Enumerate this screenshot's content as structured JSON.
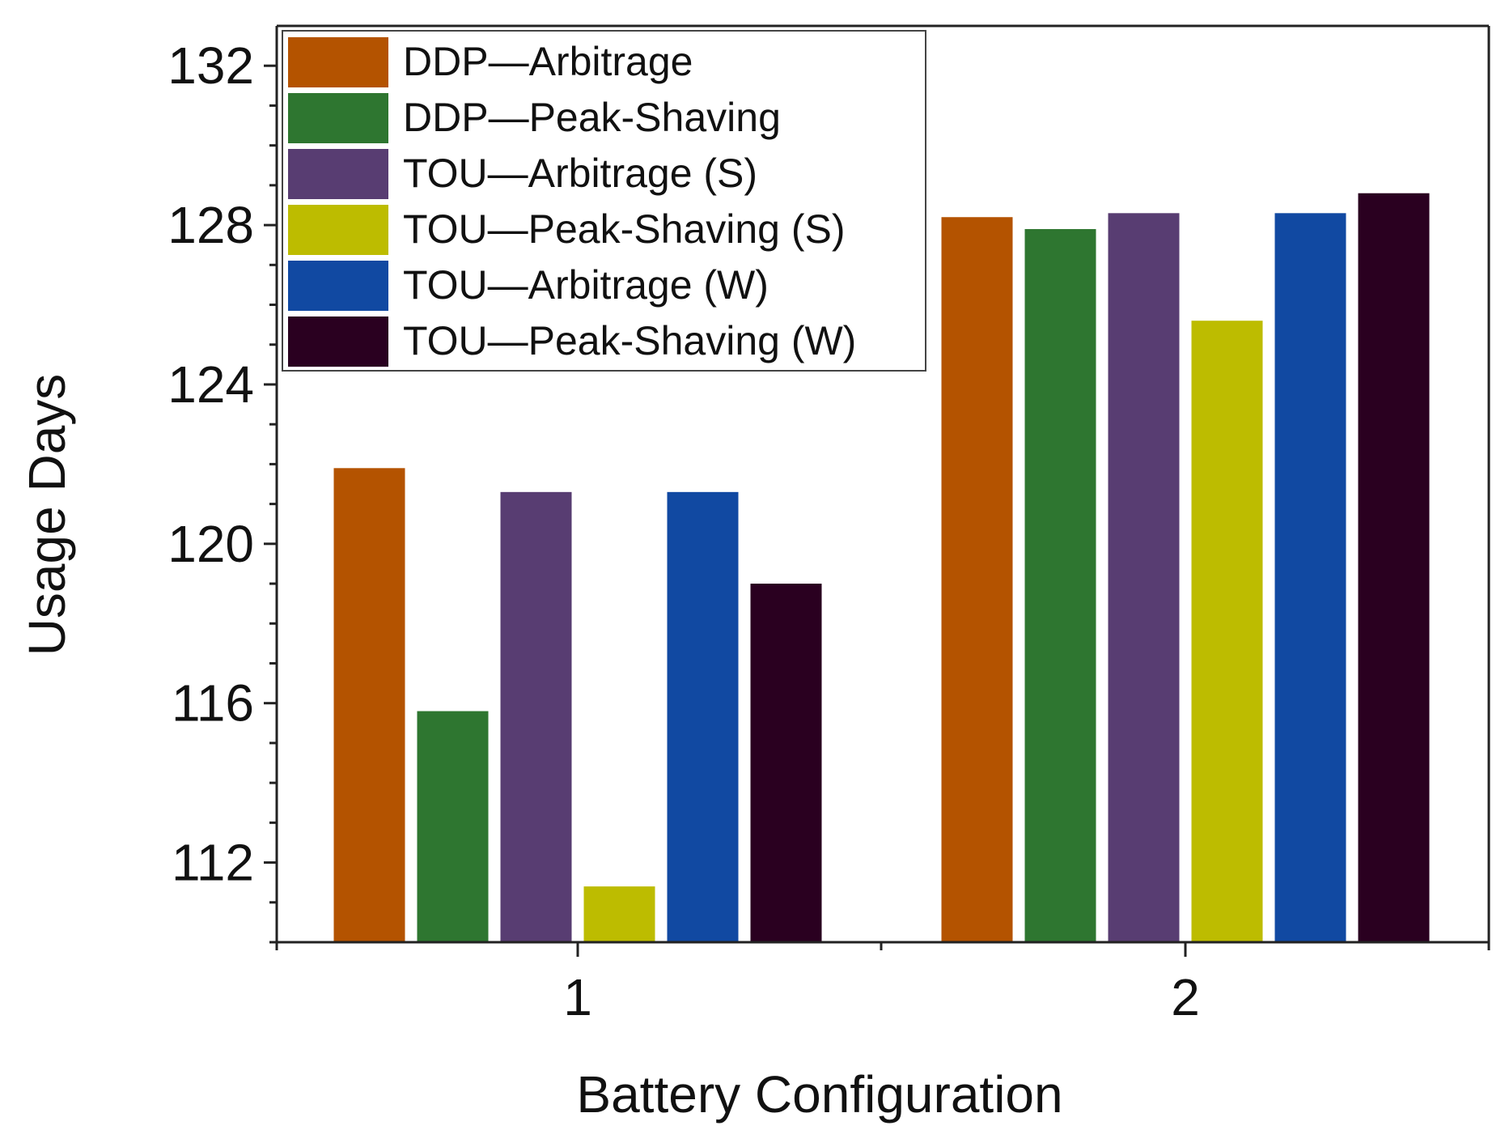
{
  "chart_data": {
    "type": "bar",
    "title": "",
    "xlabel": "Battery Configuration",
    "ylabel": "Usage Days",
    "categories": [
      "1",
      "2"
    ],
    "ylim": [
      110,
      133
    ],
    "yticks": [
      "112",
      "116",
      "120",
      "124",
      "128",
      "132"
    ],
    "series": [
      {
        "name": "DDP—Arbitrage",
        "color": "#B45300",
        "values": [
          121.9,
          128.2
        ]
      },
      {
        "name": "DDP—Peak-Shaving",
        "color": "#2E7630",
        "values": [
          115.8,
          127.9
        ]
      },
      {
        "name": "TOU—Arbitrage (S)",
        "color": "#583D72",
        "values": [
          121.3,
          128.3
        ]
      },
      {
        "name": "TOU—Peak-Shaving (S)",
        "color": "#BDBC00",
        "values": [
          111.4,
          125.6
        ]
      },
      {
        "name": "TOU—Arbitrage (W)",
        "color": "#1149A2",
        "values": [
          121.3,
          128.3
        ]
      },
      {
        "name": "TOU—Peak-Shaving (W)",
        "color": "#2A0020",
        "values": [
          119.0,
          128.8
        ]
      }
    ],
    "grid": false,
    "legend_position": "top-left"
  }
}
